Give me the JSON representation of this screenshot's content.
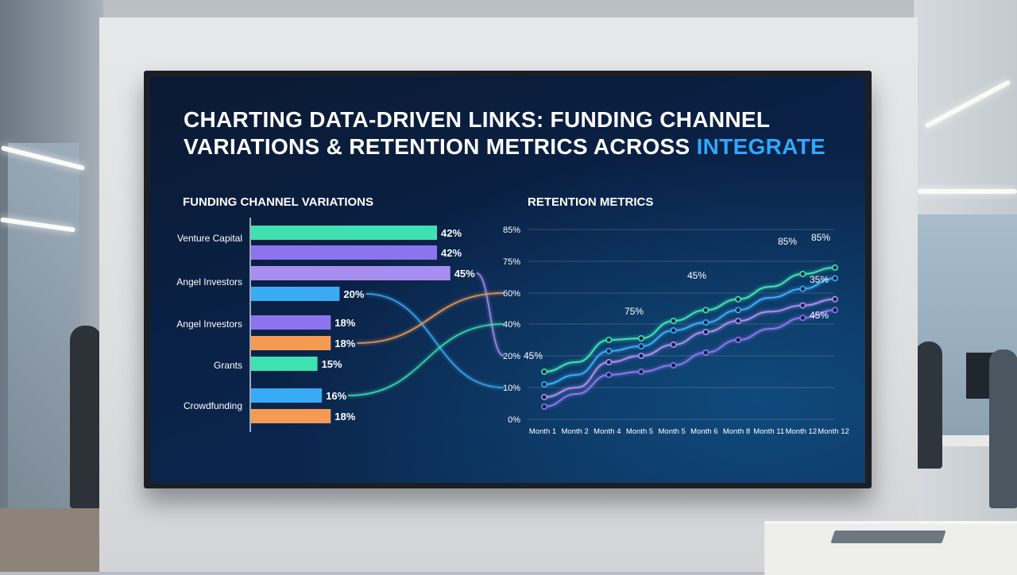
{
  "slide": {
    "title_main": "CHARTING DATA-DRIVEN LINKS: FUNDING CHANNEL VARIATIONS & RETENTION METRICS ACROSS ",
    "title_accent": "INTEGRATE"
  },
  "colors": {
    "teal": "#3de2b0",
    "violet": "#8b74ee",
    "lavender": "#a98ef2",
    "blue": "#3aaaf5",
    "orange": "#f59a52"
  },
  "chart_data": [
    {
      "type": "bar",
      "title": "FUNDING CHANNEL VARIATIONS",
      "orientation": "horizontal",
      "categories": [
        "Venture Capital",
        "Angel Investors",
        "Angel Investors",
        "Grants",
        "Crowdfunding"
      ],
      "bars": [
        {
          "category_index": 0,
          "value": 42,
          "label": "42%",
          "color": "#3de2b0"
        },
        {
          "category_index": 0,
          "value": 42,
          "label": "42%",
          "color": "#8b74ee"
        },
        {
          "category_index": 1,
          "value": 45,
          "label": "45%",
          "color": "#a98ef2"
        },
        {
          "category_index": 1,
          "value": 20,
          "label": "20%",
          "color": "#3aaaf5"
        },
        {
          "category_index": 2,
          "value": 18,
          "label": "18%",
          "color": "#8b74ee"
        },
        {
          "category_index": 2,
          "value": 18,
          "label": "18%",
          "color": "#f59a52"
        },
        {
          "category_index": 3,
          "value": 15,
          "label": "15%",
          "color": "#3de2b0"
        },
        {
          "category_index": 4,
          "value": 16,
          "label": "16%",
          "color": "#3aaaf5"
        },
        {
          "category_index": 4,
          "value": 18,
          "label": "18%",
          "color": "#f59a52"
        }
      ]
    },
    {
      "type": "line",
      "title": "RETENTION METRICS",
      "x": [
        "Month 1",
        "Month 2",
        "Month 4",
        "Month 5",
        "Month 5",
        "Month 6",
        "Month 8",
        "Month 11",
        "Month 12",
        "Month 12"
      ],
      "y_ticks": [
        "0%",
        "10%",
        "20%",
        "40%",
        "60%",
        "75%",
        "85%"
      ],
      "ylim": [
        0,
        85
      ],
      "series": [
        {
          "color": "#3de2b0",
          "values": [
            15,
            18,
            30,
            31,
            42,
            49,
            56,
            63,
            69,
            72
          ]
        },
        {
          "color": "#3aaaf5",
          "values": [
            11,
            14,
            23,
            26,
            36,
            41,
            49,
            57,
            62,
            67
          ]
        },
        {
          "color": "#a98ef2",
          "values": [
            7,
            10,
            18,
            20,
            27,
            35,
            42,
            48,
            52,
            56
          ]
        },
        {
          "color": "#8b74ee",
          "values": [
            4,
            8,
            14,
            15,
            17,
            22,
            30,
            37,
            44,
            49
          ]
        }
      ],
      "annotations": [
        "45%",
        "75%",
        "45%",
        "85%",
        "85%",
        "35%",
        "45%"
      ],
      "grid": true
    }
  ]
}
